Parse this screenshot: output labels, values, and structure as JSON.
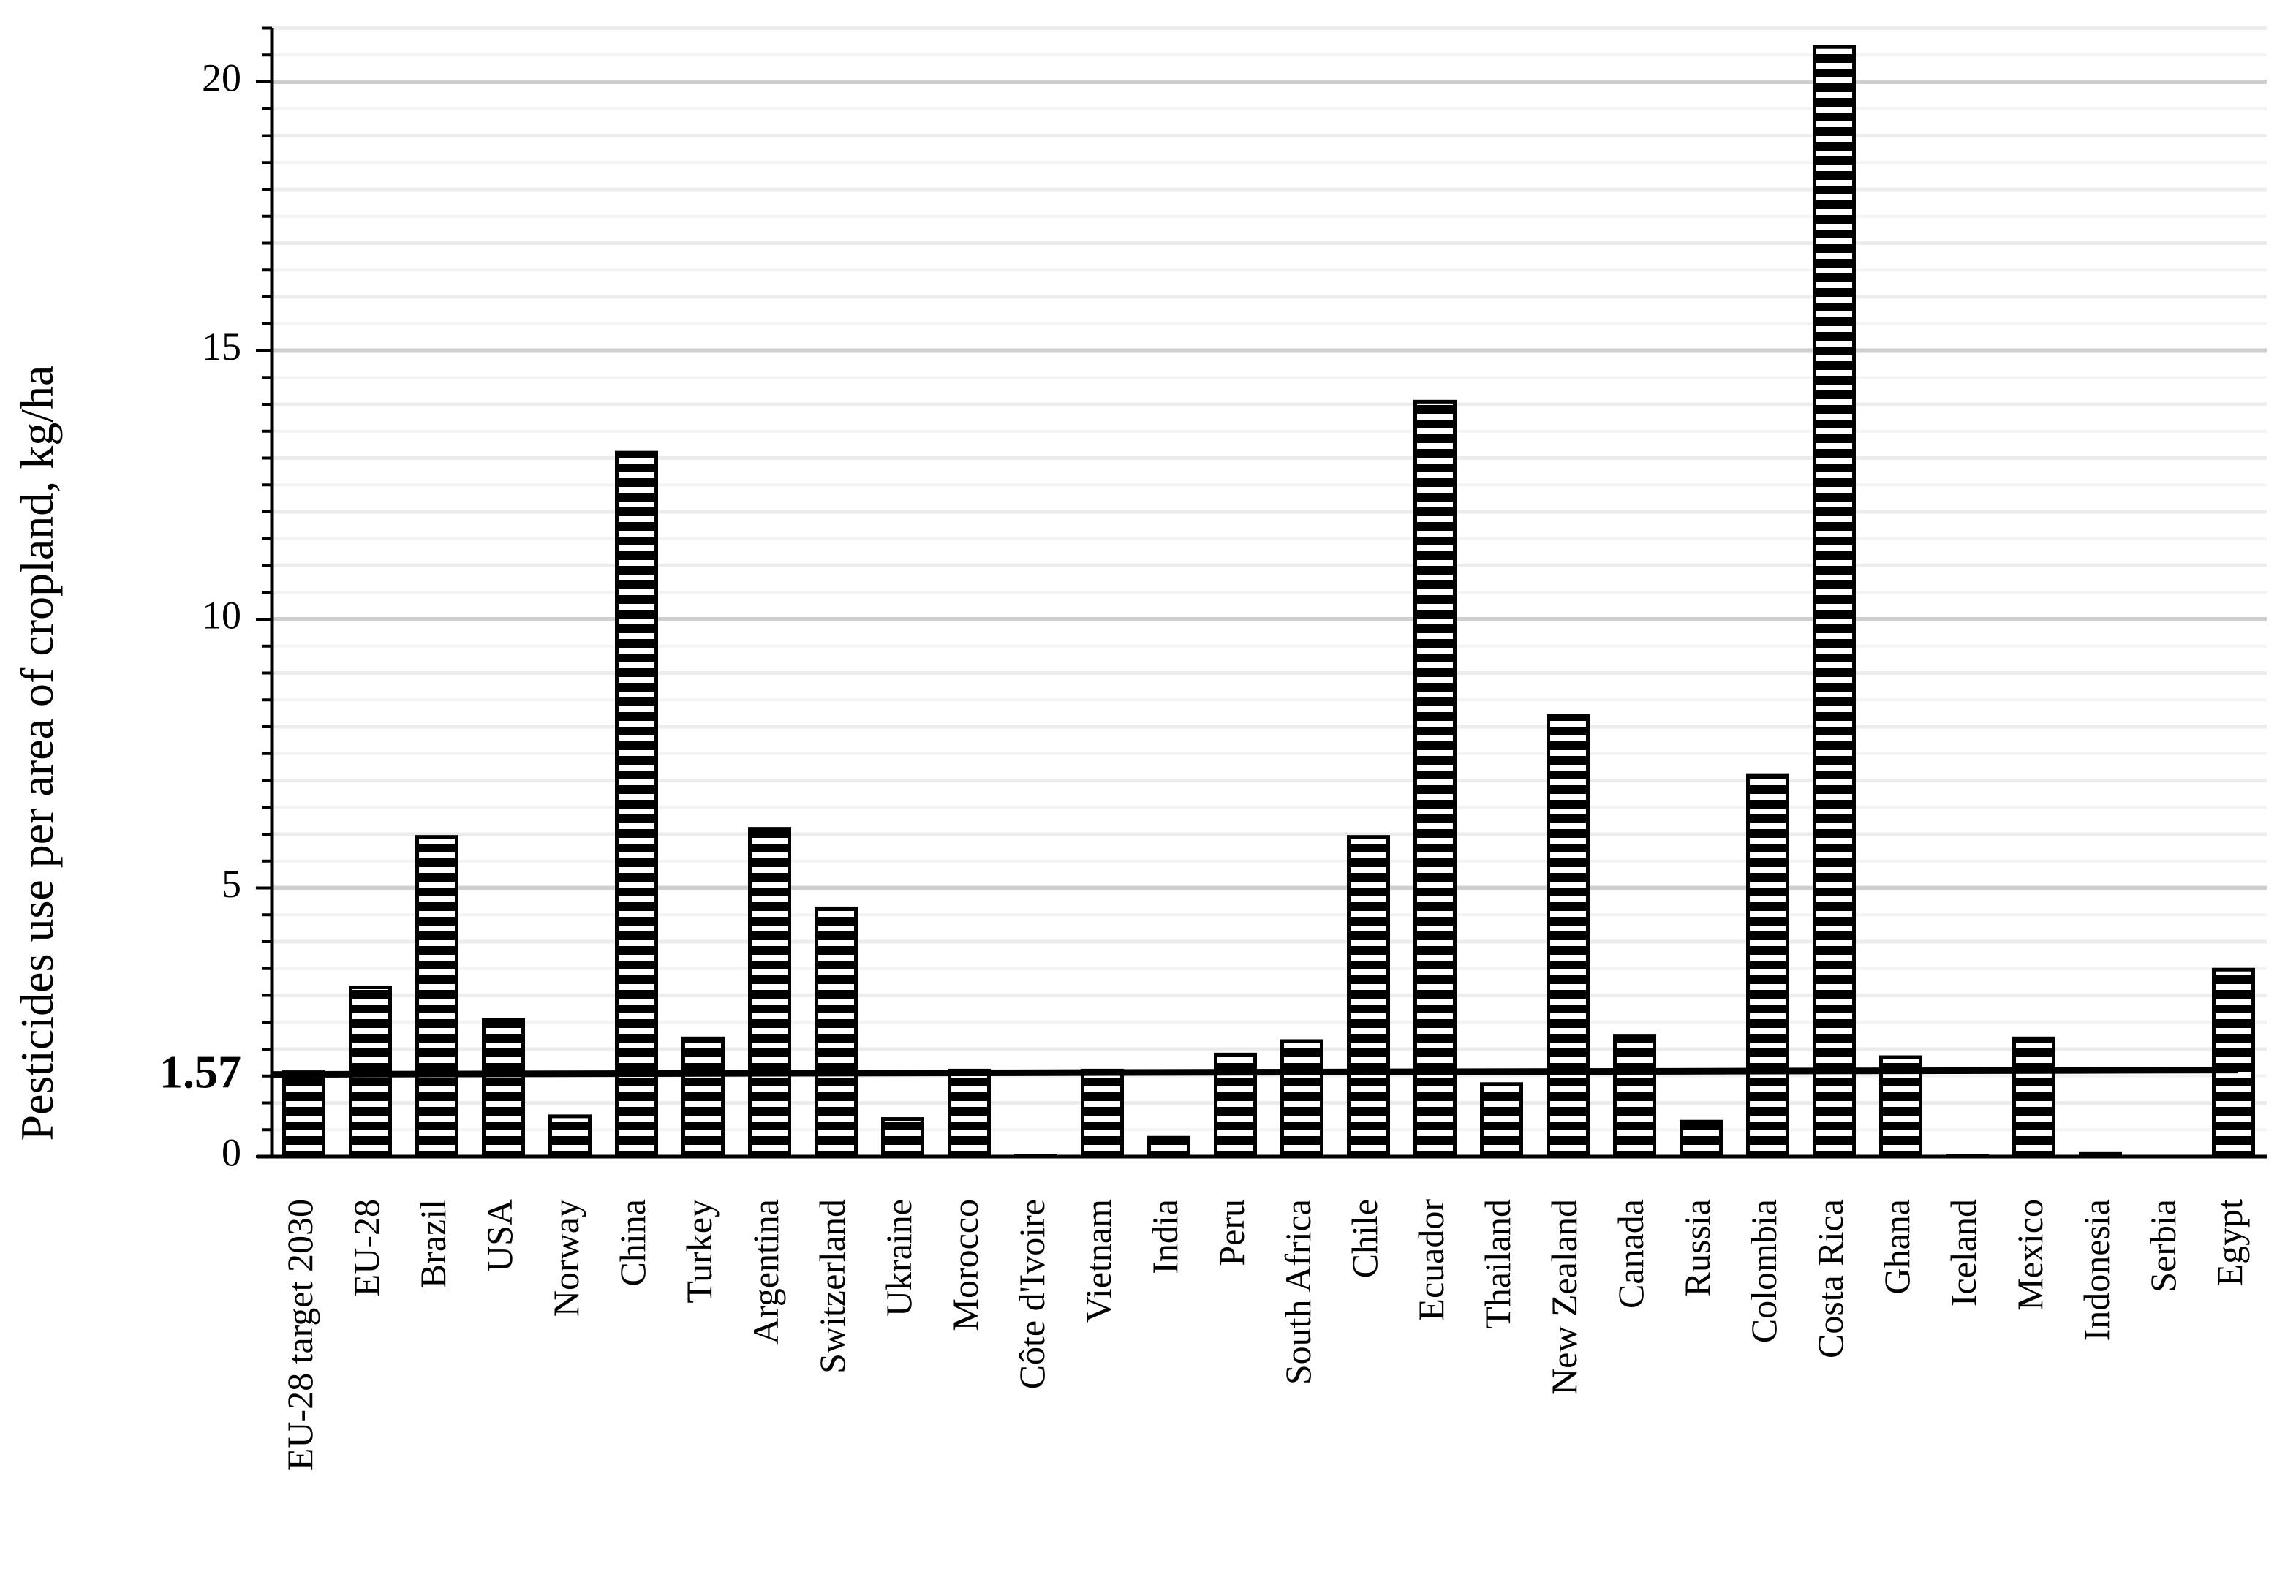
{
  "chart_data": {
    "type": "bar",
    "title": "",
    "xlabel": "",
    "ylabel": "Pesticides use per area of cropland, kg/ha",
    "ylim": [
      0,
      21
    ],
    "yticks": [
      "0",
      "5",
      "10",
      "15",
      "20"
    ],
    "grid": true,
    "bar_pattern": "horizontal-stripes",
    "reference_line": {
      "value": 1.57,
      "label": "1.57"
    },
    "categories": [
      "EU-28 target 2030",
      "EU-28",
      "Brazil",
      "USA",
      "Norway",
      "China",
      "Turkey",
      "Argentina",
      "Switzerland",
      "Ukraine",
      "Morocco",
      "Côte d'Ivoire",
      "Vietnam",
      "India",
      "Peru",
      "South Africa",
      "Chile",
      "Ecuador",
      "Thailand",
      "New Zealand",
      "Canada",
      "Russia",
      "Colombia",
      "Costa Rica",
      "Ghana",
      "Iceland",
      "Mexico",
      "Indonesia",
      "Serbia",
      "Egypt"
    ],
    "values": [
      1.57,
      3.15,
      5.95,
      2.55,
      0.75,
      13.1,
      2.2,
      6.1,
      4.62,
      0.7,
      1.6,
      0.02,
      1.6,
      0.35,
      1.9,
      2.15,
      5.95,
      14.05,
      1.35,
      8.2,
      2.25,
      0.65,
      7.1,
      20.65,
      1.85,
      0.02,
      2.2,
      0.05,
      0.0,
      3.48
    ],
    "colors": {
      "bar_fill": "#000000",
      "bar_stripe": "#ffffff",
      "grid": "#dcdcdc",
      "axis": "#000000"
    }
  }
}
